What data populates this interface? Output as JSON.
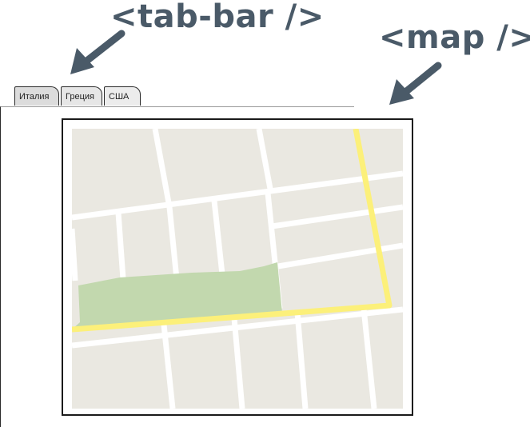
{
  "annotations": {
    "tab_bar": "<tab-bar />",
    "map": "<map />"
  },
  "tabs": [
    {
      "label": "Италия"
    },
    {
      "label": "Греция"
    },
    {
      "label": "США"
    }
  ],
  "colors": {
    "annotation_text": "#4a5a68",
    "map_background": "#eae8e1",
    "road_minor": "#ffffff",
    "road_major": "#fcf07a",
    "park": "#c2d8ae"
  },
  "map": {
    "icons": [
      "park-area",
      "major-road",
      "minor-road"
    ]
  }
}
